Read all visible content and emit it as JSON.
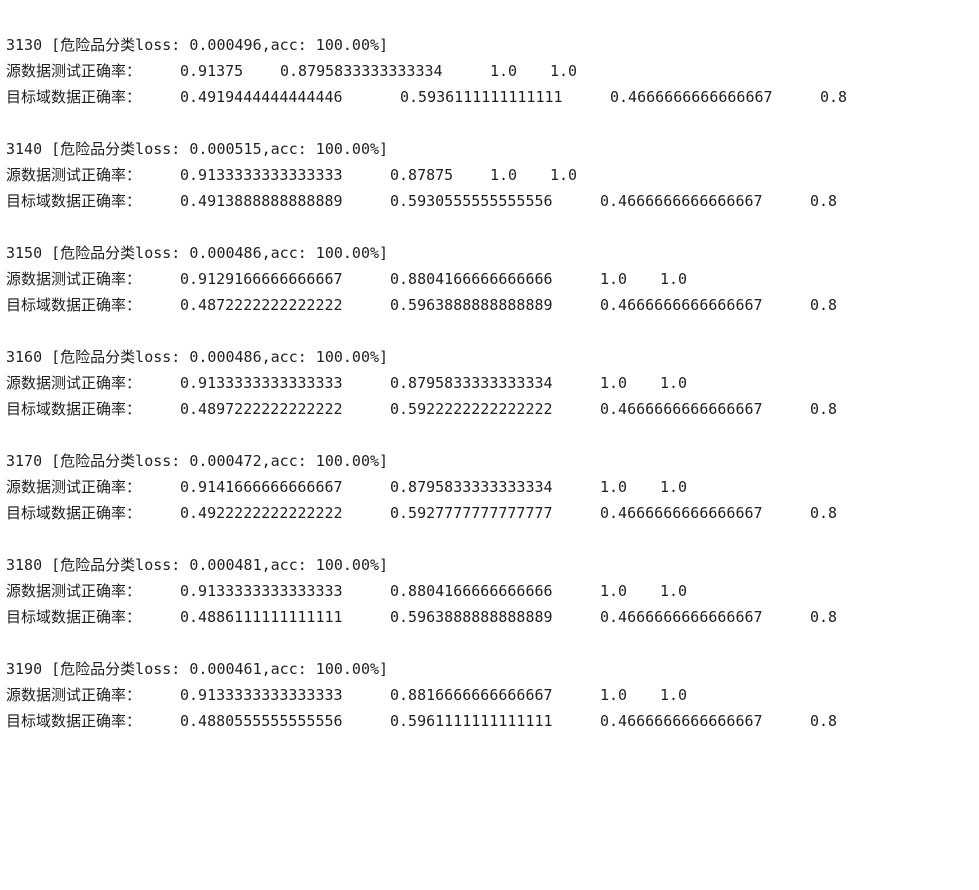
{
  "blocks": [
    {
      "header": "3130 [危险品分类loss: 0.000496,acc: 100.00%]",
      "source_label": "源数据测试正确率：",
      "source_values": [
        "0.91375",
        "0.8795833333333334",
        "1.0",
        "1.0"
      ],
      "target_label": "目标域数据正确率：",
      "target_values": [
        "0.4919444444444446",
        "0.5936111111111111",
        "0.4666666666666667",
        "0.8"
      ]
    },
    {
      "header": "3140 [危险品分类loss: 0.000515,acc: 100.00%]",
      "source_label": "源数据测试正确率：",
      "source_values": [
        "0.9133333333333333",
        "0.87875",
        "1.0",
        "1.0"
      ],
      "target_label": "目标域数据正确率：",
      "target_values": [
        "0.4913888888888889",
        "0.5930555555555556",
        "0.4666666666666667",
        "0.8"
      ]
    },
    {
      "header": "3150 [危险品分类loss: 0.000486,acc: 100.00%]",
      "source_label": "源数据测试正确率：",
      "source_values": [
        "0.9129166666666667",
        "0.8804166666666666",
        "1.0",
        "1.0"
      ],
      "target_label": "目标域数据正确率：",
      "target_values": [
        "0.4872222222222222",
        "0.5963888888888889",
        "0.4666666666666667",
        "0.8"
      ]
    },
    {
      "header": "3160 [危险品分类loss: 0.000486,acc: 100.00%]",
      "source_label": "源数据测试正确率：",
      "source_values": [
        "0.9133333333333333",
        "0.8795833333333334",
        "1.0",
        "1.0"
      ],
      "target_label": "目标域数据正确率：",
      "target_values": [
        "0.4897222222222222",
        "0.5922222222222222",
        "0.4666666666666667",
        "0.8"
      ]
    },
    {
      "header": "3170 [危险品分类loss: 0.000472,acc: 100.00%]",
      "source_label": "源数据测试正确率：",
      "source_values": [
        "0.9141666666666667",
        "0.8795833333333334",
        "1.0",
        "1.0"
      ],
      "target_label": "目标域数据正确率：",
      "target_values": [
        "0.4922222222222222",
        "0.5927777777777777",
        "0.4666666666666667",
        "0.8"
      ]
    },
    {
      "header": "3180 [危险品分类loss: 0.000481,acc: 100.00%]",
      "source_label": "源数据测试正确率：",
      "source_values": [
        "0.9133333333333333",
        "0.8804166666666666",
        "1.0",
        "1.0"
      ],
      "target_label": "目标域数据正确率：",
      "target_values": [
        "0.4886111111111111",
        "0.5963888888888889",
        "0.4666666666666667",
        "0.8"
      ]
    },
    {
      "header": "3190 [危险品分类loss: 0.000461,acc: 100.00%]",
      "source_label": "源数据测试正确率：",
      "source_values": [
        "0.9133333333333333",
        "0.8816666666666667",
        "1.0",
        "1.0"
      ],
      "target_label": "目标域数据正确率：",
      "target_values": [
        "0.4880555555555556",
        "0.5961111111111111",
        "0.4666666666666667",
        "0.8"
      ]
    }
  ]
}
